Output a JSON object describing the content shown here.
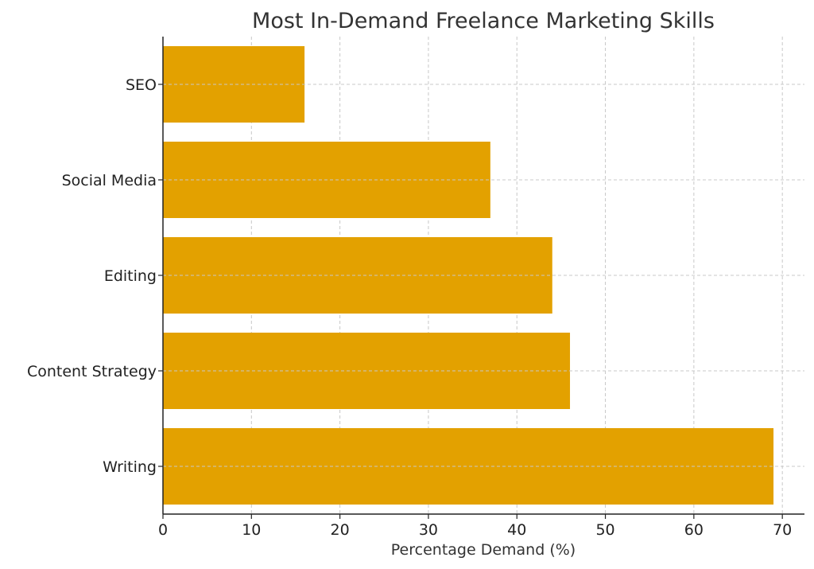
{
  "chart_data": {
    "type": "bar",
    "orientation": "horizontal",
    "title": "Most In-Demand Freelance Marketing Skills",
    "xlabel": "Percentage Demand (%)",
    "ylabel": "",
    "categories": [
      "Writing",
      "Content Strategy",
      "Editing",
      "Social Media",
      "SEO"
    ],
    "values": [
      69,
      46,
      44,
      37,
      16
    ],
    "xlim": [
      0,
      72.5
    ],
    "xticks": [
      0,
      10,
      20,
      30,
      40,
      50,
      60,
      70
    ],
    "grid": true,
    "bar_color": "#E3A100"
  }
}
